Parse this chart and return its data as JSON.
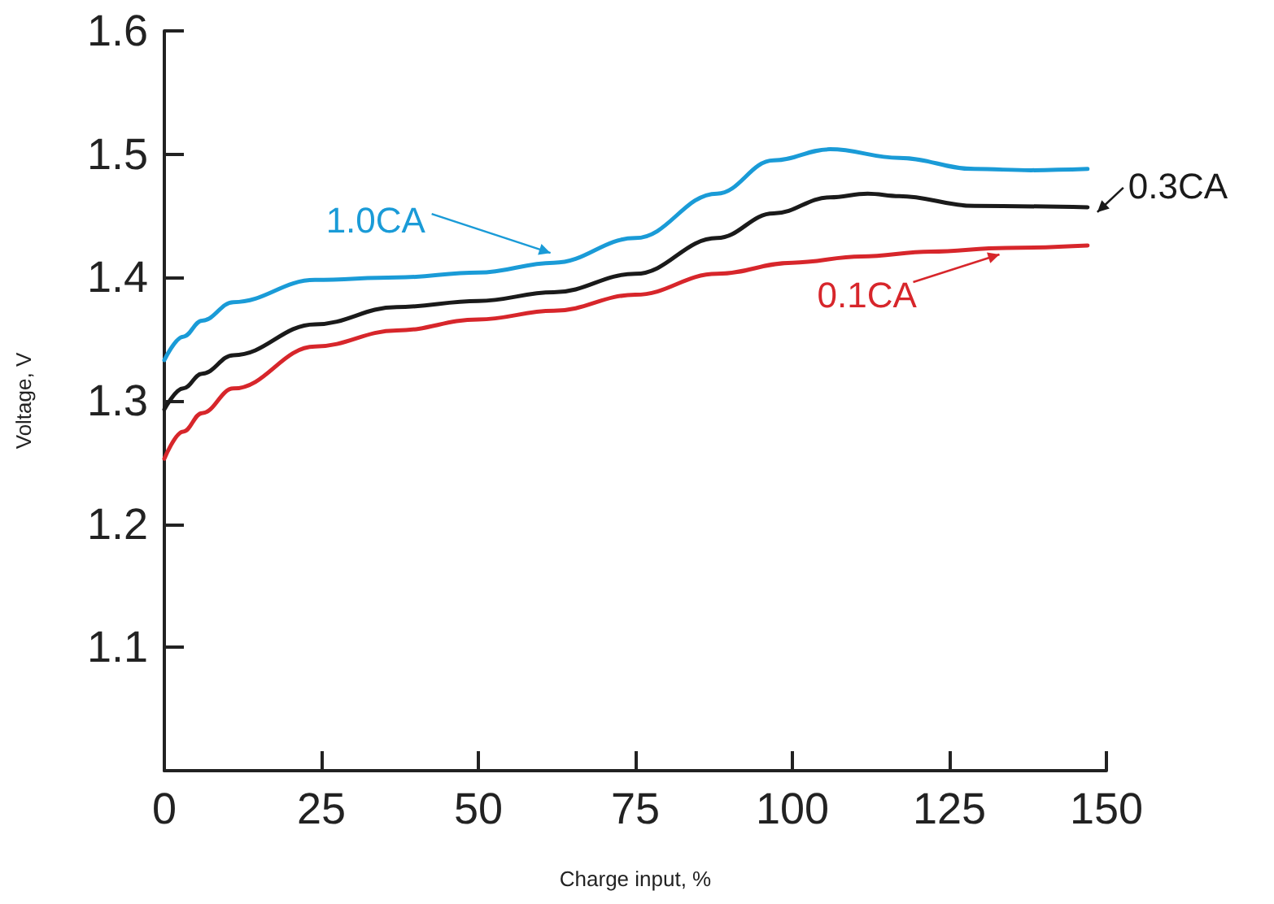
{
  "chart_data": {
    "type": "line",
    "xlabel": "Charge input, %",
    "ylabel": "Voltage, V",
    "xlim": [
      0,
      150
    ],
    "xticks": [
      0,
      25,
      50,
      75,
      100,
      125,
      150
    ],
    "ylim": [
      1.0,
      1.6
    ],
    "yticks": [
      {
        "value": 1.0,
        "label": null
      },
      1.1,
      1.2,
      1.3,
      1.4,
      1.5,
      1.6
    ],
    "marker": "none",
    "line_style": "solid",
    "series": [
      {
        "name": "1.0CA",
        "color": "#1a9bd7",
        "x": [
          0,
          3,
          6,
          11,
          24,
          37,
          50,
          62,
          75,
          88,
          97,
          106,
          117,
          129,
          138,
          147
        ],
        "values": [
          1.333,
          1.352,
          1.365,
          1.38,
          1.398,
          1.4,
          1.404,
          1.412,
          1.432,
          1.468,
          1.495,
          1.504,
          1.497,
          1.488,
          1.487,
          1.488
        ]
      },
      {
        "name": "0.3CA",
        "color": "#1a1a1a",
        "x": [
          0,
          3,
          6,
          11,
          24,
          37,
          50,
          62,
          75,
          88,
          97,
          106,
          112,
          117,
          129,
          147
        ],
        "values": [
          1.293,
          1.31,
          1.322,
          1.337,
          1.362,
          1.376,
          1.381,
          1.388,
          1.403,
          1.432,
          1.452,
          1.465,
          1.468,
          1.466,
          1.458,
          1.457
        ]
      },
      {
        "name": "0.1CA",
        "color": "#d7262b",
        "x": [
          0,
          3,
          6,
          11,
          24,
          37,
          50,
          62,
          75,
          88,
          100,
          111,
          122,
          134,
          147
        ],
        "values": [
          1.253,
          1.275,
          1.29,
          1.31,
          1.344,
          1.357,
          1.366,
          1.373,
          1.386,
          1.403,
          1.412,
          1.417,
          1.421,
          1.424,
          1.426
        ]
      }
    ]
  }
}
